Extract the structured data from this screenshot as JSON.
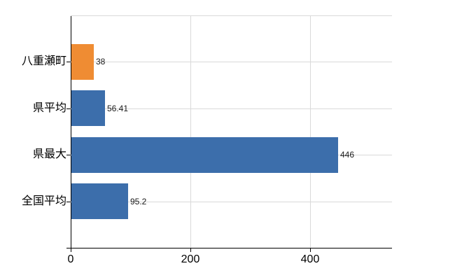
{
  "chart_data": {
    "type": "bar",
    "orientation": "horizontal",
    "title": "",
    "xlabel": "",
    "ylabel": "",
    "categories": [
      "八重瀬町",
      "県平均",
      "県最大",
      "全国平均"
    ],
    "values": [
      38,
      56.41,
      446,
      95.2
    ],
    "value_labels": [
      "38",
      "56.41",
      "446",
      "95.2"
    ],
    "bar_colors": [
      "#ef8c33",
      "#3c6eab",
      "#3c6eab",
      "#3c6eab"
    ],
    "highlight_color": "#ef8c33",
    "series_color": "#3c6eab",
    "xlim": [
      0,
      537
    ],
    "xticks": [
      0,
      200,
      400
    ],
    "xtick_labels": [
      "0",
      "200",
      "400"
    ],
    "grid": true,
    "grid_color": "#d9d9d9",
    "axis_color": "#000000",
    "legend": "none"
  }
}
